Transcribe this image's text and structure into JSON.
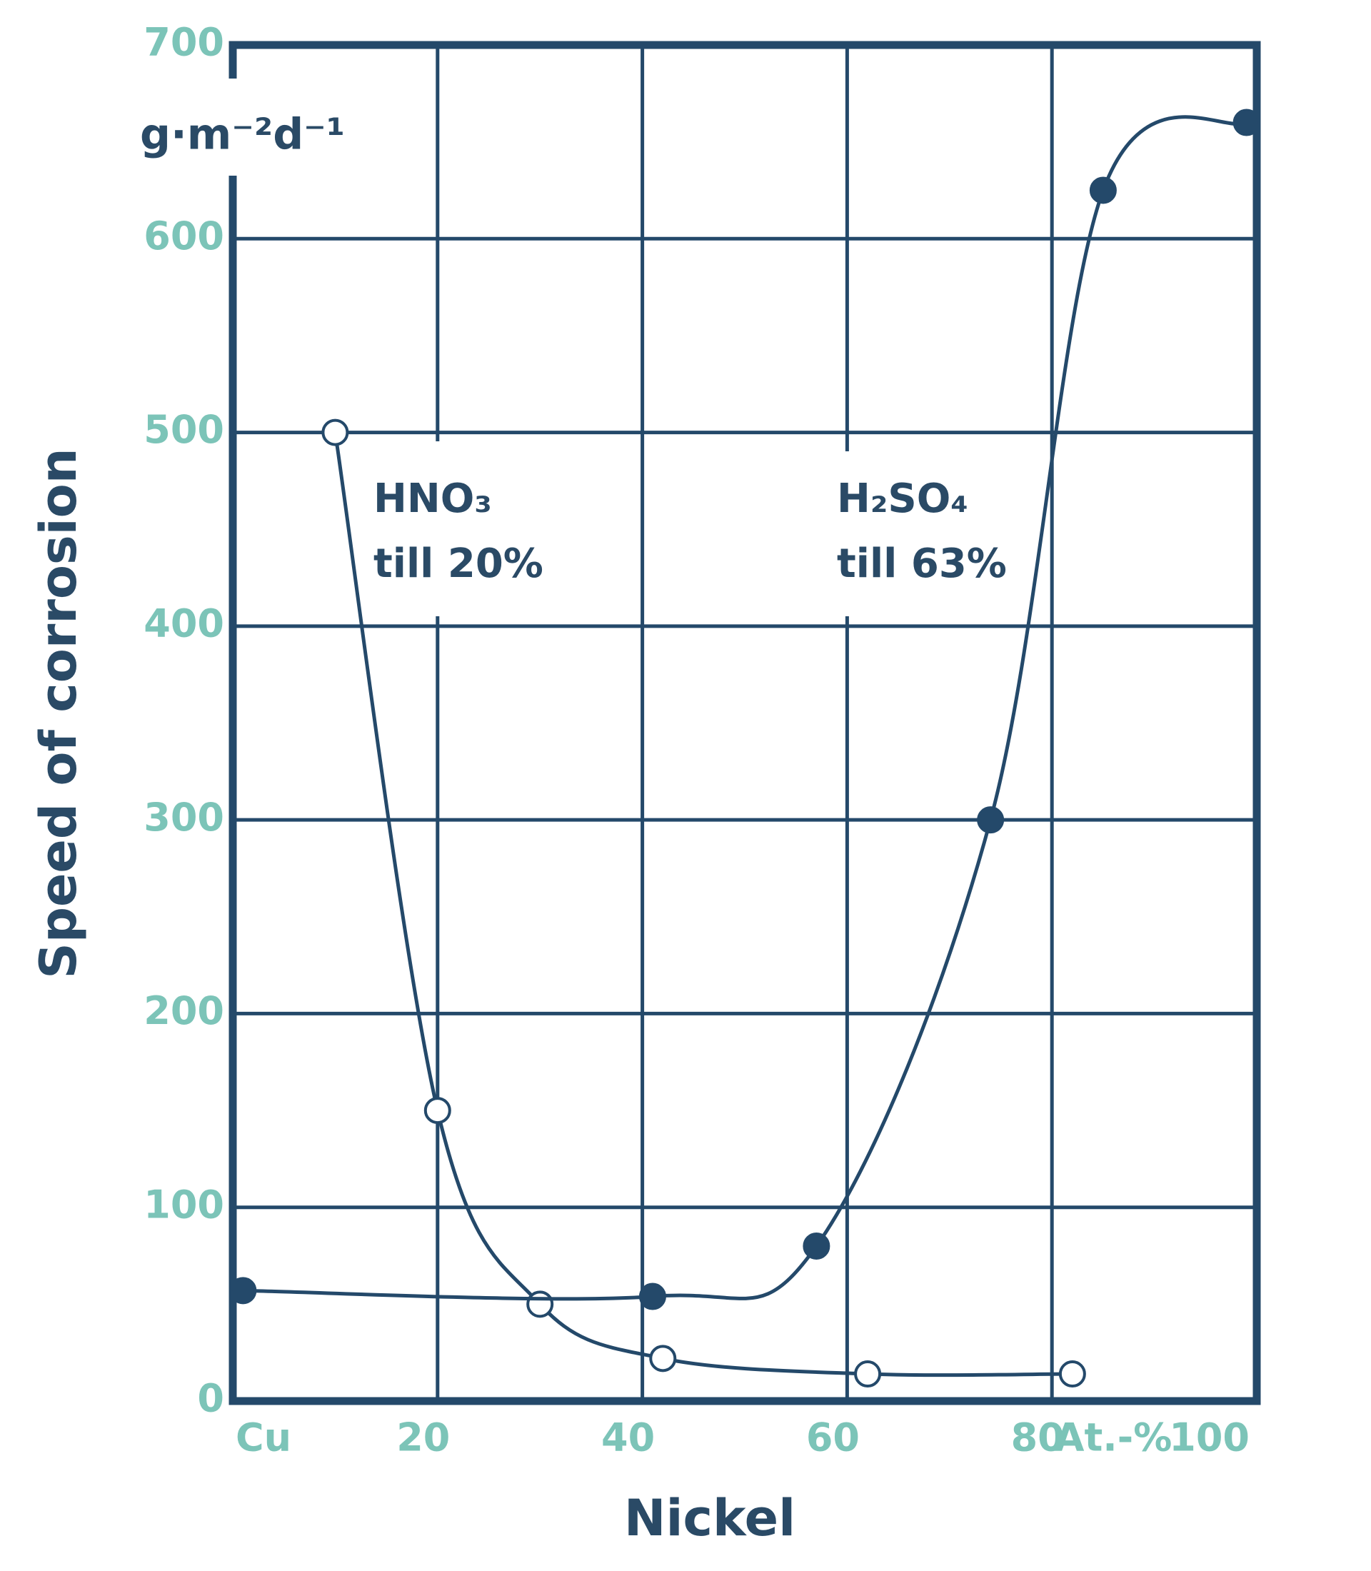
{
  "chart_data": {
    "type": "line",
    "x_label": "Nickel",
    "y_label": "Speed of corrosion",
    "y_unit": "g·m⁻²d⁻¹",
    "x_unit": "At.-%",
    "xlim": [
      0,
      100
    ],
    "ylim": [
      0,
      700
    ],
    "xticks": [
      {
        "value": 0,
        "label": "Cu"
      },
      20,
      40,
      60,
      80,
      100
    ],
    "yticks": [
      0,
      100,
      200,
      300,
      400,
      500,
      600,
      700
    ],
    "grid": true,
    "series": [
      {
        "name": "HNO₃",
        "note": "till 20%",
        "color": "#24496a",
        "marker": "open",
        "x": [
          10,
          20,
          30,
          42,
          62,
          82
        ],
        "values": [
          500,
          150,
          50,
          22,
          14,
          14
        ]
      },
      {
        "name": "H₂SO₄",
        "note": "till 63%",
        "color": "#24496a",
        "marker": "filled",
        "x": [
          1,
          41,
          57,
          74,
          85,
          99
        ],
        "values": [
          57,
          54,
          80,
          300,
          625,
          660
        ]
      }
    ]
  }
}
